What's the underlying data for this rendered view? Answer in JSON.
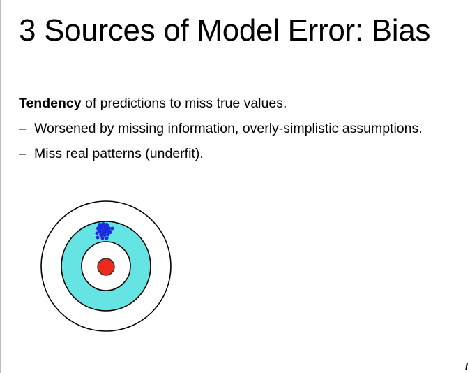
{
  "slide": {
    "title": "3 Sources of Model Error: Bias",
    "intro": {
      "bold": "Tendency",
      "rest": " of predictions to miss true values."
    },
    "bullets": [
      {
        "marker": "–",
        "text": "Worsened by missing information, overly-simplistic assumptions."
      },
      {
        "marker": "–",
        "text": "Miss real patterns (underfit)."
      }
    ]
  },
  "diagram": {
    "icon": "bias-target-icon",
    "ring_color": "#66e3e3",
    "bullseye_color": "#ee2a1f",
    "shot_color": "#1a2be0",
    "outline_color": "#000000"
  }
}
